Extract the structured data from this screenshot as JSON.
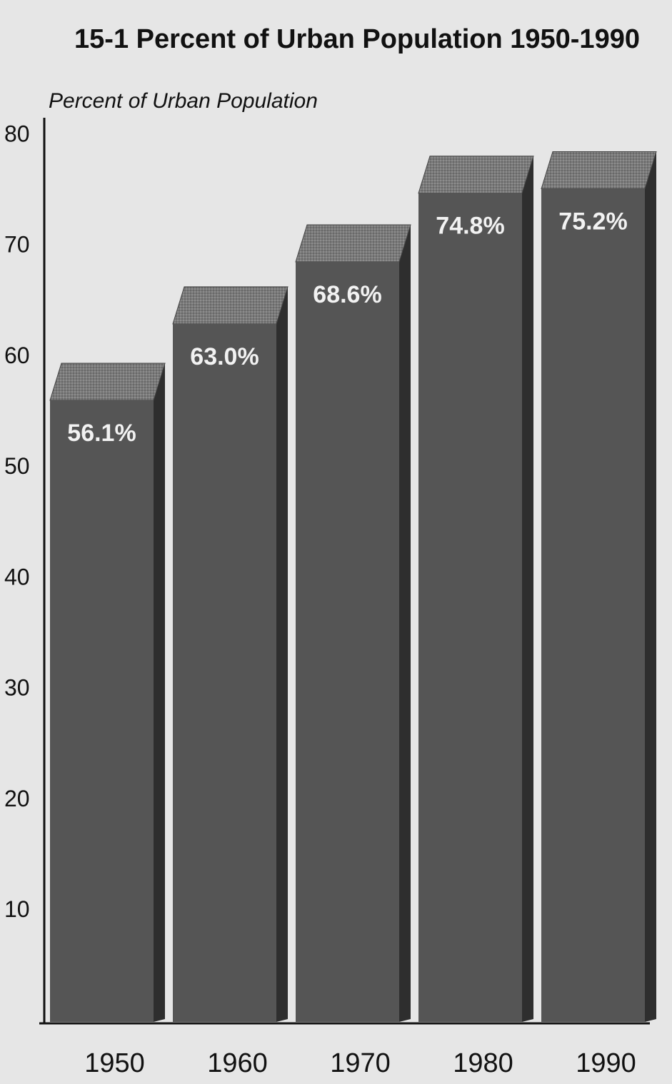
{
  "chart_data": {
    "type": "bar3d",
    "title": "15-1 Percent of Urban Population 1950-1990",
    "y_label": "Percent of Urban Population",
    "categories": [
      "1950",
      "1960",
      "1970",
      "1980",
      "1990"
    ],
    "values": [
      56.1,
      63.0,
      68.6,
      74.8,
      75.2
    ],
    "value_labels": [
      "56.1%",
      "63.0%",
      "68.6%",
      "74.8%",
      "75.2%"
    ],
    "color": "#555555",
    "ylim": [
      0,
      80
    ],
    "yticks": [
      10,
      20,
      30,
      40,
      50,
      60,
      70,
      80
    ],
    "grid": false
  }
}
